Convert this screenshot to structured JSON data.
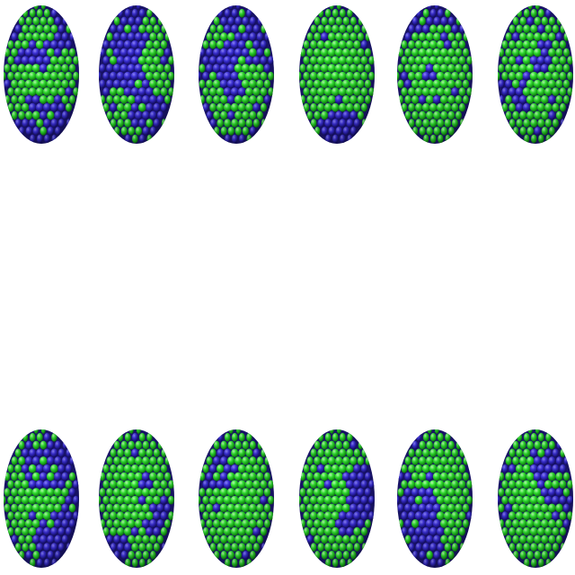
{
  "colors": {
    "background": "#ffffff",
    "particle_a": "#3a2fd6",
    "particle_b": "#2fe02f"
  },
  "rows": [
    {
      "name": "top-row",
      "ellipsoids": [
        {
          "green_fraction": 0.5,
          "seed": 11
        },
        {
          "green_fraction": 0.5,
          "seed": 23
        },
        {
          "green_fraction": 0.55,
          "seed": 37
        },
        {
          "green_fraction": 0.5,
          "seed": 41
        },
        {
          "green_fraction": 0.48,
          "seed": 53
        },
        {
          "green_fraction": 0.45,
          "seed": 67
        }
      ]
    },
    {
      "name": "bottom-row",
      "ellipsoids": [
        {
          "green_fraction": 0.6,
          "seed": 71
        },
        {
          "green_fraction": 0.65,
          "seed": 83
        },
        {
          "green_fraction": 0.68,
          "seed": 97
        },
        {
          "green_fraction": 0.7,
          "seed": 101
        },
        {
          "green_fraction": 0.72,
          "seed": 113
        },
        {
          "green_fraction": 0.74,
          "seed": 127
        }
      ]
    }
  ]
}
